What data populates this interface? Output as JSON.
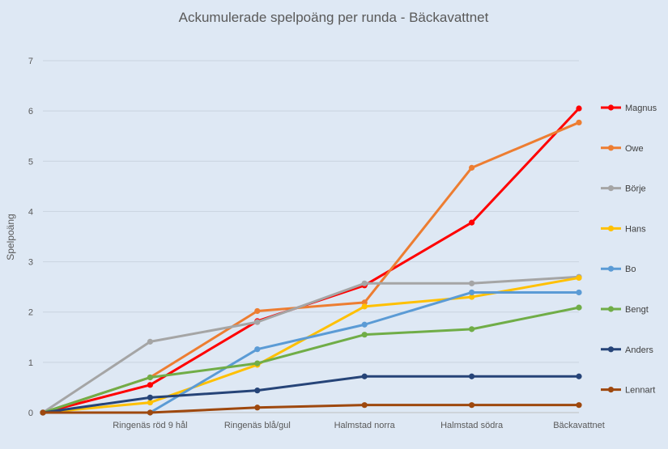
{
  "chart_data": {
    "type": "line",
    "title": "Ackumulerade spelpoäng per runda - Bäckavattnet",
    "xlabel": "",
    "ylabel": "Spelpoäng",
    "ylim": [
      0,
      7
    ],
    "yticks": [
      "0",
      "1",
      "2",
      "3",
      "4",
      "5",
      "6",
      "7"
    ],
    "grid": true,
    "legend_position": "right",
    "categories": [
      "",
      "Ringenäs röd 9 hål",
      "Ringenäs blå/gul",
      "Halmstad norra",
      "Halmstad södra",
      "Bäckavattnet"
    ],
    "series": [
      {
        "name": "Magnus",
        "color": "#ff0000",
        "values": [
          0,
          0.55,
          1.82,
          2.53,
          3.78,
          6.05
        ]
      },
      {
        "name": "Owe",
        "color": "#ed7d31",
        "values": [
          0,
          0.7,
          2.02,
          2.19,
          4.87,
          5.77
        ]
      },
      {
        "name": "Börje",
        "color": "#a5a5a5",
        "values": [
          0,
          1.41,
          1.8,
          2.57,
          2.57,
          2.7
        ]
      },
      {
        "name": "Hans",
        "color": "#ffc000",
        "values": [
          0,
          0.2,
          0.95,
          2.11,
          2.3,
          2.68
        ]
      },
      {
        "name": "Bo",
        "color": "#5b9bd5",
        "values": [
          0,
          0,
          1.26,
          1.75,
          2.39,
          2.39
        ]
      },
      {
        "name": "Bengt",
        "color": "#70ad47",
        "values": [
          0,
          0.7,
          0.98,
          1.55,
          1.66,
          2.09
        ]
      },
      {
        "name": "Anders",
        "color": "#264478",
        "values": [
          0,
          0.3,
          0.44,
          0.72,
          0.72,
          0.72
        ]
      },
      {
        "name": "Lennart",
        "color": "#9e480e",
        "values": [
          0,
          0,
          0.1,
          0.15,
          0.15,
          0.15
        ]
      }
    ]
  }
}
